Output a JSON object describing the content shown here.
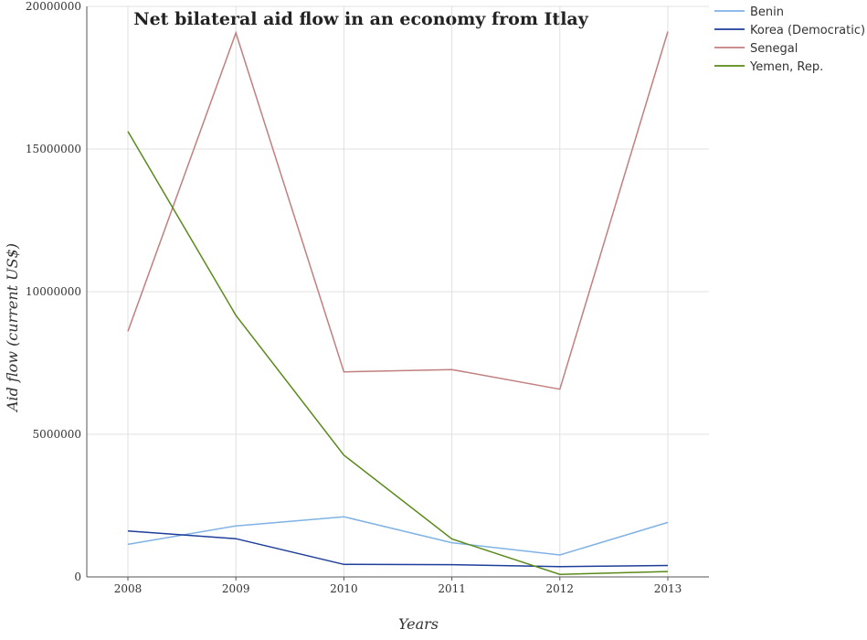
{
  "chart_data": {
    "type": "line",
    "title": "Net bilateral aid flow in an economy from Itlay",
    "xlabel": "Years",
    "ylabel": "Aid flow (current US$)",
    "categories": [
      "2008",
      "2009",
      "2010",
      "2011",
      "2012",
      "2013"
    ],
    "ylim": [
      0,
      20000000
    ],
    "yticks": [
      0,
      5000000,
      10000000,
      15000000,
      20000000
    ],
    "ytick_labels": [
      "0",
      "5000000",
      "10000000",
      "15000000",
      "20000000"
    ],
    "grid": true,
    "legend_position": "top-right",
    "series": [
      {
        "name": "Benin",
        "color": "#7fb2e5",
        "values": [
          1140000,
          1790000,
          2110000,
          1200000,
          770000,
          1910000
        ]
      },
      {
        "name": "Korea (Democratic)",
        "color": "#1f3e9b",
        "values": [
          1610000,
          1340000,
          440000,
          430000,
          360000,
          400000
        ]
      },
      {
        "name": "Senegal",
        "color": "#c27f7f",
        "values": [
          8610000,
          19070000,
          7190000,
          7270000,
          6580000,
          19120000
        ]
      },
      {
        "name": "Yemen, Rep.",
        "color": "#5a8a1a",
        "values": [
          15620000,
          9170000,
          4270000,
          1330000,
          90000,
          190000
        ]
      }
    ]
  }
}
